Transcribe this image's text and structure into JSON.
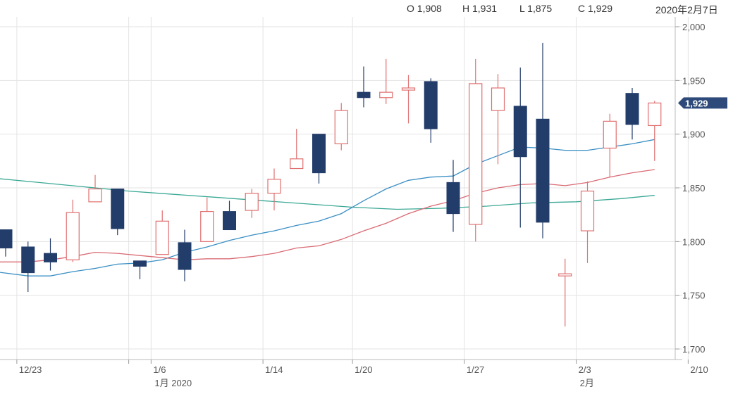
{
  "header": {
    "open": "O 1,908",
    "high": "H 1,931",
    "low": "L 1,875",
    "close": "C 1,929",
    "date": "2020年2月7日"
  },
  "last_price_label": "1,929",
  "colors": {
    "up": "#e07070",
    "down": "#233d6b",
    "ma_short": "#d96b74",
    "ma_mid": "#3a8fc4",
    "ma_long": "#3aa895",
    "grid": "#e3e3e3",
    "price_tag": "#2e4a7a"
  },
  "chart_data": {
    "type": "candlestick",
    "ylim": [
      1680,
      2010
    ],
    "y_ticks": [
      {
        "value": 2000,
        "label": "2,000"
      },
      {
        "value": 1950,
        "label": "1,950"
      },
      {
        "value": 1900,
        "label": "1,900"
      },
      {
        "value": 1850,
        "label": "1,850"
      },
      {
        "value": 1800,
        "label": "1,800"
      },
      {
        "value": 1750,
        "label": "1,750"
      },
      {
        "value": 1700,
        "label": "1,700"
      }
    ],
    "x_ticks": [
      {
        "index": -0.5,
        "label": "",
        "month": ""
      },
      {
        "index": 0.5,
        "label": "12/23",
        "month": ""
      },
      {
        "index": 5.5,
        "label": "",
        "month": ""
      },
      {
        "index": 6.5,
        "label": "1/6",
        "month": "1月 2020"
      },
      {
        "index": 11.5,
        "label": "1/14",
        "month": ""
      },
      {
        "index": 15.5,
        "label": "1/20",
        "month": ""
      },
      {
        "index": 20.5,
        "label": "1/27",
        "month": ""
      },
      {
        "index": 25.5,
        "label": "2/3",
        "month": "2月"
      },
      {
        "index": 30.5,
        "label": "2/10",
        "month": ""
      }
    ],
    "candles": [
      {
        "o": 1811,
        "h": 1811,
        "l": 1786,
        "c": 1794
      },
      {
        "o": 1795,
        "h": 1800,
        "l": 1753,
        "c": 1771
      },
      {
        "o": 1789,
        "h": 1803,
        "l": 1773,
        "c": 1781
      },
      {
        "o": 1783,
        "h": 1839,
        "l": 1781,
        "c": 1827
      },
      {
        "o": 1837,
        "h": 1862,
        "l": 1837,
        "c": 1849
      },
      {
        "o": 1849,
        "h": 1849,
        "l": 1806,
        "c": 1812
      },
      {
        "o": 1782,
        "h": 1782,
        "l": 1765,
        "c": 1777
      },
      {
        "o": 1788,
        "h": 1829,
        "l": 1788,
        "c": 1819
      },
      {
        "o": 1799,
        "h": 1811,
        "l": 1763,
        "c": 1774
      },
      {
        "o": 1800,
        "h": 1841,
        "l": 1800,
        "c": 1828
      },
      {
        "o": 1828,
        "h": 1838,
        "l": 1811,
        "c": 1811
      },
      {
        "o": 1829,
        "h": 1849,
        "l": 1822,
        "c": 1845
      },
      {
        "o": 1845,
        "h": 1868,
        "l": 1829,
        "c": 1858
      },
      {
        "o": 1868,
        "h": 1905,
        "l": 1868,
        "c": 1877
      },
      {
        "o": 1900,
        "h": 1900,
        "l": 1854,
        "c": 1864
      },
      {
        "o": 1891,
        "h": 1929,
        "l": 1885,
        "c": 1922
      },
      {
        "o": 1939,
        "h": 1963,
        "l": 1925,
        "c": 1934
      },
      {
        "o": 1934,
        "h": 1970,
        "l": 1928,
        "c": 1939
      },
      {
        "o": 1941,
        "h": 1955,
        "l": 1910,
        "c": 1943
      },
      {
        "o": 1949,
        "h": 1952,
        "l": 1892,
        "c": 1905
      },
      {
        "o": 1855,
        "h": 1876,
        "l": 1809,
        "c": 1826
      },
      {
        "o": 1816,
        "h": 1970,
        "l": 1800,
        "c": 1947
      },
      {
        "o": 1922,
        "h": 1956,
        "l": 1872,
        "c": 1943
      },
      {
        "o": 1926,
        "h": 1962,
        "l": 1813,
        "c": 1879
      },
      {
        "o": 1914,
        "h": 1985,
        "l": 1803,
        "c": 1818
      },
      {
        "o": 1768,
        "h": 1784,
        "l": 1721,
        "c": 1770
      },
      {
        "o": 1810,
        "h": 1856,
        "l": 1780,
        "c": 1847
      },
      {
        "o": 1887,
        "h": 1919,
        "l": 1860,
        "c": 1912
      },
      {
        "o": 1938,
        "h": 1943,
        "l": 1895,
        "c": 1909
      },
      {
        "o": 1908,
        "h": 1931,
        "l": 1875,
        "c": 1929
      }
    ],
    "moving_averages": [
      {
        "color_key": "ma_long",
        "values": [
          [
            -0.5,
            1859
          ],
          [
            1.5,
            1855
          ],
          [
            3.5,
            1851
          ],
          [
            5.5,
            1847
          ],
          [
            7.5,
            1844
          ],
          [
            9.5,
            1841
          ],
          [
            11.5,
            1838
          ],
          [
            13.5,
            1835
          ],
          [
            15.5,
            1832
          ],
          [
            17.5,
            1830
          ],
          [
            19.5,
            1831
          ],
          [
            21.5,
            1833
          ],
          [
            23.5,
            1836
          ],
          [
            25.5,
            1837
          ],
          [
            27.5,
            1840
          ],
          [
            29,
            1843
          ]
        ]
      },
      {
        "color_key": "ma_mid",
        "values": [
          [
            -0.5,
            1772
          ],
          [
            1,
            1768
          ],
          [
            2,
            1768
          ],
          [
            3,
            1772
          ],
          [
            4,
            1775
          ],
          [
            5,
            1779
          ],
          [
            6,
            1780
          ],
          [
            7,
            1783
          ],
          [
            8,
            1790
          ],
          [
            9,
            1795
          ],
          [
            10,
            1801
          ],
          [
            11,
            1806
          ],
          [
            12,
            1810
          ],
          [
            13,
            1815
          ],
          [
            14,
            1819
          ],
          [
            15,
            1826
          ],
          [
            16,
            1838
          ],
          [
            17,
            1849
          ],
          [
            18,
            1857
          ],
          [
            19,
            1860
          ],
          [
            20,
            1861
          ],
          [
            21,
            1872
          ],
          [
            22,
            1880
          ],
          [
            23,
            1888
          ],
          [
            24,
            1887
          ],
          [
            25,
            1885
          ],
          [
            26,
            1885
          ],
          [
            27,
            1888
          ],
          [
            28,
            1891
          ],
          [
            29,
            1895
          ]
        ]
      },
      {
        "color_key": "ma_short",
        "values": [
          [
            -0.5,
            1781
          ],
          [
            1,
            1781
          ],
          [
            2,
            1783
          ],
          [
            3,
            1786
          ],
          [
            4,
            1790
          ],
          [
            5,
            1789
          ],
          [
            6,
            1787
          ],
          [
            7,
            1785
          ],
          [
            8,
            1783
          ],
          [
            9,
            1784
          ],
          [
            10,
            1784
          ],
          [
            11,
            1786
          ],
          [
            12,
            1789
          ],
          [
            13,
            1794
          ],
          [
            14,
            1796
          ],
          [
            15,
            1802
          ],
          [
            16,
            1810
          ],
          [
            17,
            1817
          ],
          [
            18,
            1826
          ],
          [
            19,
            1833
          ],
          [
            20,
            1838
          ],
          [
            21,
            1845
          ],
          [
            22,
            1850
          ],
          [
            23,
            1853
          ],
          [
            24,
            1854
          ],
          [
            25,
            1852
          ],
          [
            26,
            1855
          ],
          [
            27,
            1860
          ],
          [
            28,
            1864
          ],
          [
            29,
            1867
          ]
        ]
      }
    ]
  }
}
